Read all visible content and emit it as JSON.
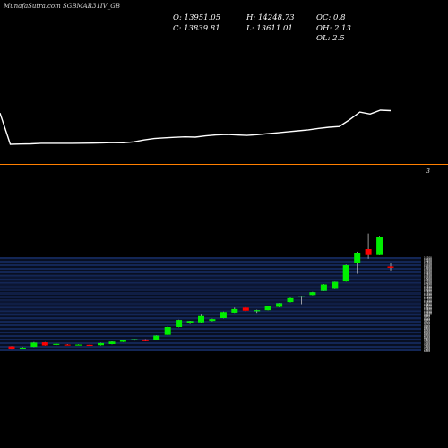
{
  "header": {
    "title": "MunafaSutra.com SGBMAR31IV_GB",
    "open_label": "O: 13951.05",
    "high_label": "H: 14248.73",
    "oc_label": "OC: 0.8",
    "close_label": "C: 13839.81",
    "low_label": "L: 13611.01",
    "oh_label": "OH: 2.13",
    "ol_label": "OL: 2.5"
  },
  "colors": {
    "background": "#000000",
    "line": "#ffffff",
    "divider": "#ff7f00",
    "grid": "#1f3c88",
    "up_candle": "#00ee00",
    "down_candle": "#ff0000"
  },
  "chart_data": [
    {
      "type": "line",
      "title": "",
      "series": [
        {
          "values": [
            100,
            35,
            35.5,
            36,
            37,
            37,
            37,
            37,
            37.2,
            37.5,
            38,
            38.5,
            38.2,
            40,
            44,
            47,
            48.5,
            49.5,
            50.5,
            50,
            52.5,
            54.5,
            55.5,
            54.5,
            53.5,
            55,
            57,
            59,
            61,
            63,
            65,
            68,
            70.5,
            72,
            86,
            102,
            98,
            106,
            105
          ]
        }
      ],
      "right_marker": "3"
    },
    {
      "type": "candlestick",
      "title": "",
      "price_axis_labels": [
        "14700",
        "14600",
        "14500",
        "14400",
        "14300",
        "14200",
        "14100",
        "14000",
        "13900",
        "13800",
        "13700",
        "13600",
        "13500",
        "13400",
        "13300",
        "13200",
        "13100",
        "13000",
        "12900",
        "12800",
        "12700",
        "12600",
        "12500",
        "12400",
        "12300",
        "12200",
        "12100",
        "12000",
        "11900",
        "11800",
        "11700",
        "11600",
        "11500",
        "11400",
        "11300",
        "11200",
        "11100",
        "11000",
        "10900",
        "10800",
        "10700",
        "10600",
        "10500",
        "10400",
        "10300",
        "10200",
        "10100",
        "10000",
        "9900",
        "9800",
        "9700",
        "9600",
        "9500",
        "9400",
        "9300",
        "9200",
        "9100",
        "9000",
        "8900",
        "8800",
        "8700",
        "8600",
        "8500",
        "8400",
        "8300",
        "8200",
        "8100",
        "8000",
        "7900",
        "7800",
        "7700",
        "7600",
        "7500",
        "7400",
        "7300",
        "7200",
        "7100",
        "7000",
        "6900"
      ],
      "ylim": [
        6880,
        14800
      ],
      "candles": [
        {
          "o": 7280,
          "h": 7300,
          "l": 7020,
          "c": 7040
        },
        {
          "o": 7120,
          "h": 7220,
          "l": 7080,
          "c": 7190
        },
        {
          "o": 7250,
          "h": 7640,
          "l": 7230,
          "c": 7600
        },
        {
          "o": 7620,
          "h": 7640,
          "l": 7340,
          "c": 7360
        },
        {
          "o": 7420,
          "h": 7520,
          "l": 7380,
          "c": 7500
        },
        {
          "o": 7440,
          "h": 7480,
          "l": 7370,
          "c": 7390
        },
        {
          "o": 7400,
          "h": 7460,
          "l": 7380,
          "c": 7440
        },
        {
          "o": 7420,
          "h": 7430,
          "l": 7340,
          "c": 7360
        },
        {
          "o": 7380,
          "h": 7580,
          "l": 7360,
          "c": 7560
        },
        {
          "o": 7480,
          "h": 7700,
          "l": 7460,
          "c": 7680
        },
        {
          "o": 7660,
          "h": 7820,
          "l": 7640,
          "c": 7800
        },
        {
          "o": 7780,
          "h": 7900,
          "l": 7760,
          "c": 7880
        },
        {
          "o": 7860,
          "h": 7880,
          "l": 7700,
          "c": 7720
        },
        {
          "o": 7800,
          "h": 8200,
          "l": 7780,
          "c": 8180
        },
        {
          "o": 8250,
          "h": 8940,
          "l": 8230,
          "c": 8900
        },
        {
          "o": 8900,
          "h": 9520,
          "l": 8880,
          "c": 9490
        },
        {
          "o": 9250,
          "h": 9420,
          "l": 9150,
          "c": 9400
        },
        {
          "o": 9300,
          "h": 9920,
          "l": 9280,
          "c": 9820
        },
        {
          "o": 9400,
          "h": 9600,
          "l": 9370,
          "c": 9560
        },
        {
          "o": 9640,
          "h": 10180,
          "l": 9620,
          "c": 10150
        },
        {
          "o": 10100,
          "h": 10520,
          "l": 10080,
          "c": 10400
        },
        {
          "o": 10520,
          "h": 10560,
          "l": 10200,
          "c": 10260
        },
        {
          "o": 10250,
          "h": 10350,
          "l": 10080,
          "c": 10300
        },
        {
          "o": 10300,
          "h": 10650,
          "l": 10280,
          "c": 10620
        },
        {
          "o": 10570,
          "h": 10900,
          "l": 10550,
          "c": 10880
        },
        {
          "o": 10980,
          "h": 11350,
          "l": 10950,
          "c": 11300
        },
        {
          "o": 11400,
          "h": 11500,
          "l": 10800,
          "c": 11450
        },
        {
          "o": 11570,
          "h": 11830,
          "l": 11540,
          "c": 11800
        },
        {
          "o": 11920,
          "h": 12480,
          "l": 11900,
          "c": 12450
        },
        {
          "o": 12150,
          "h": 12680,
          "l": 12130,
          "c": 12660
        },
        {
          "o": 12700,
          "h": 14100,
          "l": 12680,
          "c": 14050
        },
        {
          "o": 14200,
          "h": 15180,
          "l": 13340,
          "c": 15100
        },
        {
          "o": 15400,
          "h": 16700,
          "l": 14600,
          "c": 14900
        },
        {
          "o": 14900,
          "h": 16500,
          "l": 14880,
          "c": 16400
        },
        {
          "o": 13951.05,
          "h": 14248.73,
          "l": 13611.01,
          "c": 13839.81
        }
      ]
    }
  ]
}
